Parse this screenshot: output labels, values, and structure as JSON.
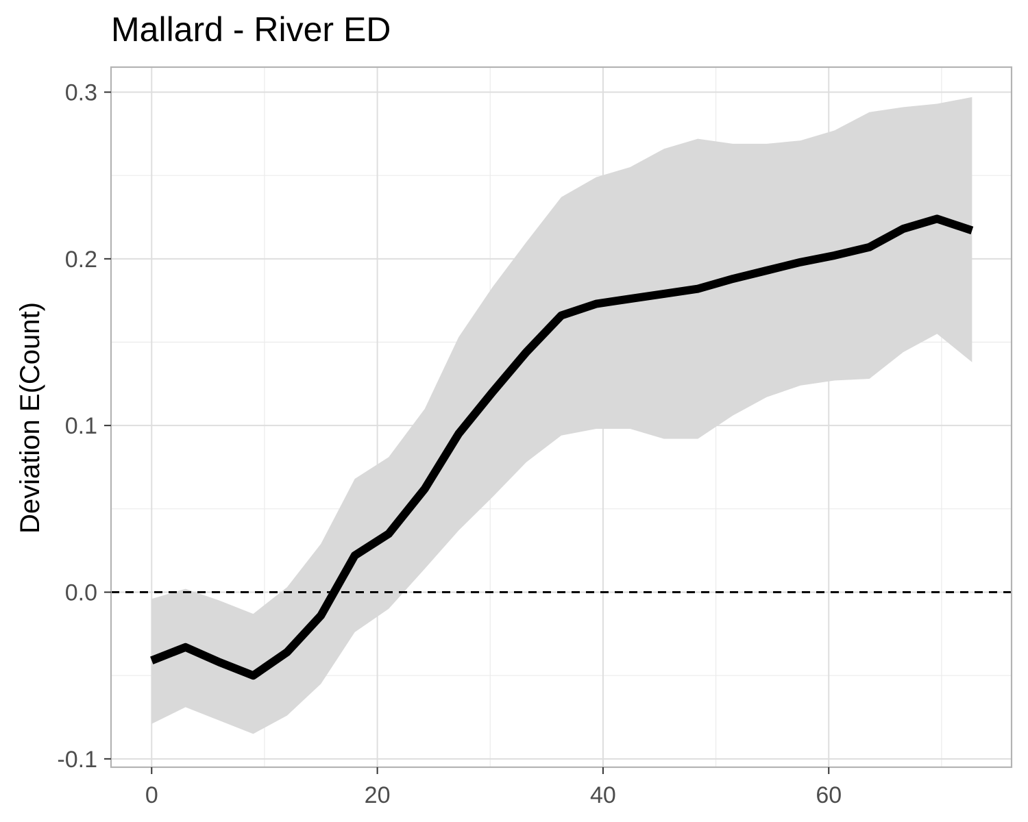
{
  "chart_data": {
    "type": "line",
    "title": "Mallard - River ED",
    "xlabel": "",
    "ylabel": "Deviation E(Count)",
    "xlim": [
      -3.6,
      76.2
    ],
    "ylim": [
      -0.105,
      0.315
    ],
    "x_ticks": [
      0,
      20,
      40,
      60
    ],
    "x_tick_labels": [
      "0",
      "20",
      "40",
      "60"
    ],
    "x_minor_ticks": [
      10,
      30,
      50,
      70
    ],
    "y_ticks": [
      -0.1,
      0.0,
      0.1,
      0.2,
      0.3
    ],
    "y_tick_labels": [
      "-0.1",
      "0.0",
      "0.1",
      "0.2",
      "0.3"
    ],
    "y_minor_ticks": [
      -0.05,
      0.05,
      0.15,
      0.25
    ],
    "grid": true,
    "reference_line": {
      "y": 0.0,
      "style": "dashed",
      "color": "#000000"
    },
    "series": [
      {
        "color": "#000000",
        "band_color": "#d9d9d9",
        "points": [
          {
            "x": 0,
            "y": -0.041,
            "lower": -0.079,
            "upper": -0.004
          },
          {
            "x": 3,
            "y": -0.033,
            "lower": -0.069,
            "upper": 0.002
          },
          {
            "x": 6,
            "y": -0.042,
            "lower": -0.077,
            "upper": -0.005
          },
          {
            "x": 9,
            "y": -0.05,
            "lower": -0.085,
            "upper": -0.013
          },
          {
            "x": 12,
            "y": -0.036,
            "lower": -0.074,
            "upper": 0.003
          },
          {
            "x": 15,
            "y": -0.014,
            "lower": -0.055,
            "upper": 0.029
          },
          {
            "x": 18,
            "y": 0.022,
            "lower": -0.024,
            "upper": 0.068
          },
          {
            "x": 21,
            "y": 0.035,
            "lower": -0.01,
            "upper": 0.081
          },
          {
            "x": 24.2,
            "y": 0.062,
            "lower": 0.014,
            "upper": 0.11
          },
          {
            "x": 27.2,
            "y": 0.095,
            "lower": 0.037,
            "upper": 0.153
          },
          {
            "x": 30.2,
            "y": 0.12,
            "lower": 0.057,
            "upper": 0.183
          },
          {
            "x": 33.2,
            "y": 0.144,
            "lower": 0.078,
            "upper": 0.21
          },
          {
            "x": 36.3,
            "y": 0.166,
            "lower": 0.094,
            "upper": 0.237
          },
          {
            "x": 39.4,
            "y": 0.173,
            "lower": 0.098,
            "upper": 0.249
          },
          {
            "x": 42.4,
            "y": 0.176,
            "lower": 0.098,
            "upper": 0.255
          },
          {
            "x": 45.4,
            "y": 0.179,
            "lower": 0.092,
            "upper": 0.266
          },
          {
            "x": 48.4,
            "y": 0.182,
            "lower": 0.092,
            "upper": 0.272
          },
          {
            "x": 51.5,
            "y": 0.188,
            "lower": 0.106,
            "upper": 0.269
          },
          {
            "x": 54.5,
            "y": 0.193,
            "lower": 0.117,
            "upper": 0.269
          },
          {
            "x": 57.5,
            "y": 0.198,
            "lower": 0.124,
            "upper": 0.271
          },
          {
            "x": 60.5,
            "y": 0.202,
            "lower": 0.127,
            "upper": 0.277
          },
          {
            "x": 63.6,
            "y": 0.207,
            "lower": 0.128,
            "upper": 0.288
          },
          {
            "x": 66.6,
            "y": 0.218,
            "lower": 0.144,
            "upper": 0.291
          },
          {
            "x": 69.6,
            "y": 0.224,
            "lower": 0.155,
            "upper": 0.293
          },
          {
            "x": 72.7,
            "y": 0.217,
            "lower": 0.138,
            "upper": 0.297
          }
        ]
      }
    ]
  }
}
